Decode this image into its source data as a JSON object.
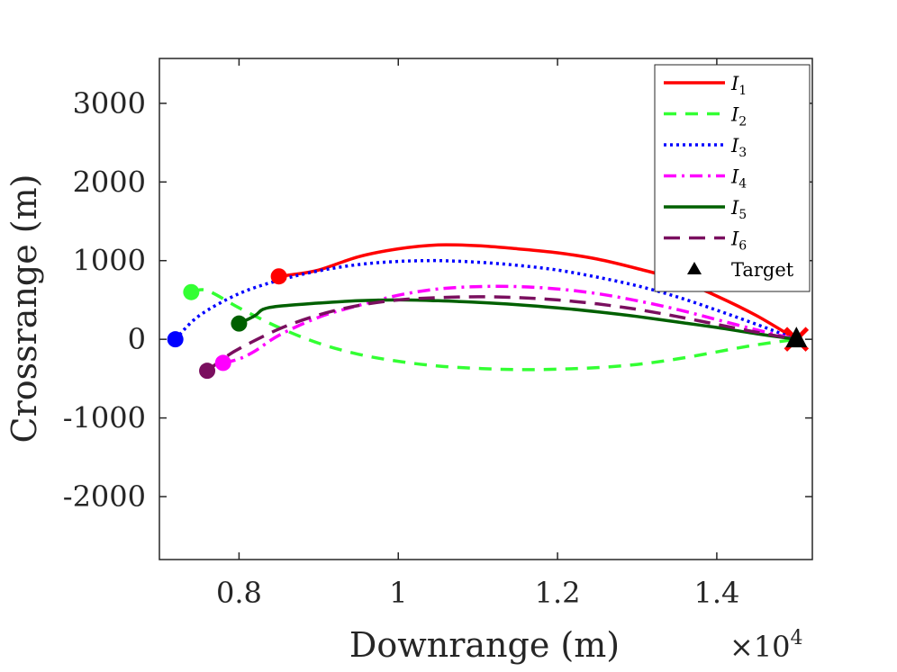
{
  "chart_data": {
    "type": "line",
    "xlabel": "Downrange (m)",
    "ylabel": "Crossrange (m)",
    "x_exponent_label": "×10",
    "x_exponent_power": "4",
    "xlim": [
      0.7,
      1.52
    ],
    "ylim": [
      -2800,
      3570
    ],
    "x_ticks": [
      0.8,
      1,
      1.2,
      1.4
    ],
    "x_tick_labels": [
      "0.8",
      "1",
      "1.2",
      "1.4"
    ],
    "y_ticks": [
      -2000,
      -1000,
      0,
      1000,
      2000,
      3000
    ],
    "y_tick_labels": [
      "-2000",
      "-1000",
      "0",
      "1000",
      "2000",
      "3000"
    ],
    "grid": false,
    "legend_position": "top-right",
    "target": {
      "x": 1.5,
      "y": 0,
      "label": "Target",
      "color": "#000000"
    },
    "series": [
      {
        "name": "I",
        "sub": "1",
        "color": "#ff0000",
        "dash": "solid",
        "x": [
          0.85,
          0.865,
          0.9,
          0.95,
          1.0,
          1.05,
          1.1,
          1.15,
          1.2,
          1.25,
          1.3,
          1.35,
          1.4,
          1.45,
          1.5
        ],
        "y": [
          800,
          820,
          880,
          1050,
          1150,
          1200,
          1190,
          1150,
          1100,
          1020,
          900,
          760,
          550,
          300,
          0
        ]
      },
      {
        "name": "I",
        "sub": "2",
        "color": "#33ff33",
        "dash": "dashed",
        "x": [
          0.74,
          0.76,
          0.8,
          0.85,
          0.9,
          0.95,
          1.0,
          1.05,
          1.1,
          1.15,
          1.2,
          1.25,
          1.3,
          1.35,
          1.4,
          1.45,
          1.5
        ],
        "y": [
          600,
          620,
          400,
          150,
          -50,
          -190,
          -280,
          -340,
          -370,
          -385,
          -380,
          -360,
          -320,
          -250,
          -160,
          -70,
          0
        ]
      },
      {
        "name": "I",
        "sub": "3",
        "color": "#0000ff",
        "dash": "dotted",
        "x": [
          0.72,
          0.75,
          0.8,
          0.85,
          0.9,
          0.95,
          1.0,
          1.05,
          1.1,
          1.15,
          1.2,
          1.25,
          1.3,
          1.35,
          1.4,
          1.45,
          1.5
        ],
        "y": [
          0,
          300,
          580,
          750,
          870,
          950,
          990,
          1000,
          980,
          940,
          880,
          790,
          680,
          540,
          370,
          190,
          0
        ]
      },
      {
        "name": "I",
        "sub": "4",
        "color": "#ff00ff",
        "dash": "dashdot",
        "x": [
          0.78,
          0.8,
          0.82,
          0.85,
          0.9,
          0.95,
          1.0,
          1.05,
          1.1,
          1.15,
          1.2,
          1.25,
          1.3,
          1.35,
          1.4,
          1.45,
          1.5
        ],
        "y": [
          -300,
          -250,
          -150,
          50,
          280,
          430,
          560,
          640,
          670,
          670,
          640,
          580,
          490,
          380,
          250,
          120,
          0
        ]
      },
      {
        "name": "I",
        "sub": "5",
        "color": "#006000",
        "dash": "solid",
        "x": [
          0.8,
          0.82,
          0.83,
          0.85,
          0.9,
          0.95,
          1.0,
          1.05,
          1.1,
          1.15,
          1.2,
          1.25,
          1.3,
          1.35,
          1.4,
          1.45,
          1.5
        ],
        "y": [
          200,
          300,
          380,
          420,
          460,
          490,
          500,
          490,
          470,
          440,
          400,
          350,
          290,
          220,
          150,
          70,
          0
        ]
      },
      {
        "name": "I",
        "sub": "6",
        "color": "#7a0f5f",
        "dash": "longdash",
        "x": [
          0.76,
          0.78,
          0.8,
          0.85,
          0.9,
          0.95,
          1.0,
          1.05,
          1.1,
          1.15,
          1.2,
          1.25,
          1.3,
          1.35,
          1.4,
          1.45,
          1.5
        ],
        "y": [
          -400,
          -250,
          -120,
          130,
          310,
          430,
          500,
          530,
          540,
          530,
          500,
          450,
          380,
          290,
          190,
          90,
          0
        ]
      }
    ]
  }
}
